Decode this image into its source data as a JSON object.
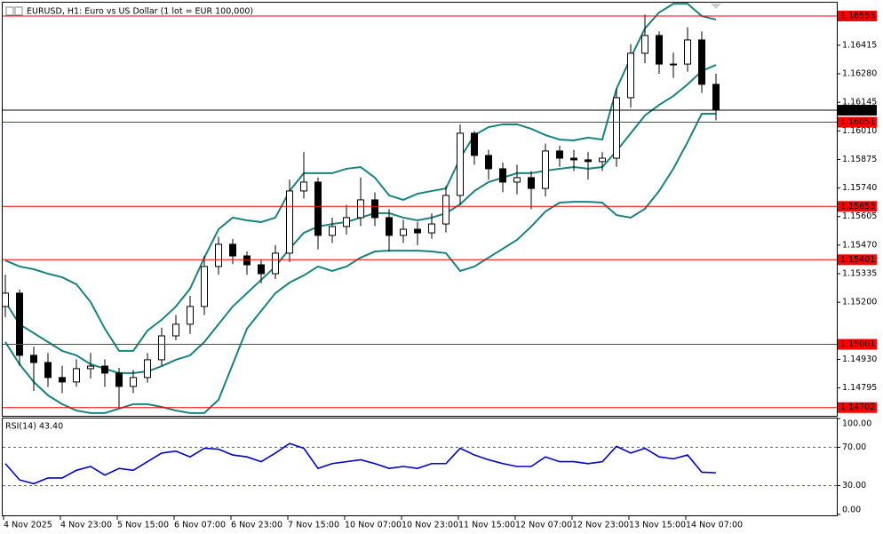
{
  "chart_data": [
    {
      "type": "candlestick",
      "title": "EURUSD, H1:  Euro vs US Dollar (1 lot = EUR 100,000)",
      "open": [
        1.1518,
        1.15243,
        1.14949,
        1.14915,
        1.14844,
        1.14823,
        1.14886,
        1.14898,
        1.14865,
        1.14802,
        1.14844,
        1.14928,
        1.15041,
        1.15096,
        1.1518,
        1.15369,
        1.15474,
        1.15419,
        1.15377,
        1.15335,
        1.15432,
        1.15726,
        1.15768,
        1.15516,
        1.15558,
        1.156,
        1.15684,
        1.156,
        1.15516,
        1.15545,
        1.15528,
        1.1557,
        1.15705,
        1.15999,
        1.15894,
        1.15831,
        1.15768,
        1.15789,
        1.15738,
        1.15915,
        1.15881,
        1.15873,
        1.15865,
        1.15881,
        1.16167,
        1.16377,
        1.16461,
        1.16326,
        1.16326,
        1.1644,
        1.1623
      ],
      "high": [
        1.1533,
        1.1526,
        1.1499,
        1.1496,
        1.149,
        1.1493,
        1.1496,
        1.1493,
        1.1489,
        1.1488,
        1.1496,
        1.1508,
        1.1514,
        1.1523,
        1.1542,
        1.1551,
        1.155,
        1.1544,
        1.154,
        1.1547,
        1.1578,
        1.1591,
        1.1579,
        1.156,
        1.1566,
        1.1579,
        1.1572,
        1.1564,
        1.1559,
        1.1558,
        1.1562,
        1.1575,
        1.1604,
        1.1601,
        1.1592,
        1.1586,
        1.1585,
        1.1582,
        1.1595,
        1.1594,
        1.1592,
        1.1591,
        1.1591,
        1.1621,
        1.1642,
        1.1656,
        1.1648,
        1.1638,
        1.165,
        1.1648,
        1.1628
      ],
      "low": [
        1.1513,
        1.149,
        1.1478,
        1.148,
        1.1477,
        1.148,
        1.1484,
        1.148,
        1.147,
        1.1477,
        1.1482,
        1.149,
        1.1502,
        1.1505,
        1.1514,
        1.1533,
        1.1538,
        1.1533,
        1.1529,
        1.1531,
        1.1539,
        1.1569,
        1.1545,
        1.1548,
        1.1552,
        1.1556,
        1.1556,
        1.1544,
        1.1548,
        1.1547,
        1.155,
        1.1553,
        1.1566,
        1.1585,
        1.1578,
        1.1572,
        1.1571,
        1.1564,
        1.157,
        1.1584,
        1.1582,
        1.1578,
        1.1582,
        1.1584,
        1.1612,
        1.1633,
        1.1628,
        1.1626,
        1.1629,
        1.1619,
        1.1606
      ],
      "close": [
        1.15243,
        1.14949,
        1.14915,
        1.14844,
        1.14823,
        1.14886,
        1.14898,
        1.14865,
        1.14802,
        1.14844,
        1.14928,
        1.15041,
        1.15096,
        1.1518,
        1.15369,
        1.15474,
        1.15419,
        1.15377,
        1.15335,
        1.15432,
        1.15726,
        1.15768,
        1.15516,
        1.15558,
        1.156,
        1.15684,
        1.156,
        1.15516,
        1.15545,
        1.15528,
        1.1557,
        1.15705,
        1.15999,
        1.15894,
        1.15831,
        1.15768,
        1.15789,
        1.15738,
        1.15915,
        1.15881,
        1.15873,
        1.15865,
        1.15881,
        1.16167,
        1.16377,
        1.16461,
        1.16326,
        1.16326,
        1.1644,
        1.1623,
        1.16108
      ],
      "up_color": "#ffffff",
      "down_color": "#000000",
      "bands": {
        "color": "#178282",
        "upper": [
          1.15398,
          1.15369,
          1.15356,
          1.15335,
          1.15318,
          1.15285,
          1.15201,
          1.15075,
          1.1497,
          1.1497,
          1.15066,
          1.15117,
          1.1518,
          1.15264,
          1.15411,
          1.15545,
          1.156,
          1.15587,
          1.15579,
          1.156,
          1.15726,
          1.1581,
          1.1581,
          1.1581,
          1.15831,
          1.15839,
          1.15789,
          1.15705,
          1.15684,
          1.15713,
          1.15726,
          1.15738,
          1.15881,
          1.1599,
          1.16028,
          1.16041,
          1.16041,
          1.1602,
          1.1599,
          1.15969,
          1.15965,
          1.15978,
          1.15969,
          1.16209,
          1.16356,
          1.16494,
          1.1657,
          1.16611,
          1.16611,
          1.16553,
          1.16536
        ],
        "middle": [
          1.15201,
          1.15096,
          1.15054,
          1.15012,
          1.1497,
          1.14949,
          1.14907,
          1.14886,
          1.14865,
          1.14865,
          1.14873,
          1.14898,
          1.14928,
          1.14949,
          1.15012,
          1.15096,
          1.1518,
          1.15243,
          1.15306,
          1.15369,
          1.15453,
          1.15528,
          1.15558,
          1.1557,
          1.15579,
          1.156,
          1.15621,
          1.15621,
          1.156,
          1.15587,
          1.156,
          1.15621,
          1.15663,
          1.15726,
          1.15768,
          1.15789,
          1.1581,
          1.1581,
          1.15822,
          1.15831,
          1.15839,
          1.15831,
          1.15839,
          1.15915,
          1.15999,
          1.16083,
          1.16133,
          1.16175,
          1.1623,
          1.16293,
          1.16322
        ],
        "lower": [
          1.15012,
          1.14907,
          1.14823,
          1.1476,
          1.14718,
          1.14688,
          1.14676,
          1.14676,
          1.14697,
          1.14718,
          1.14718,
          1.14705,
          1.14688,
          1.14676,
          1.14676,
          1.14739,
          1.14907,
          1.15075,
          1.15159,
          1.15243,
          1.15293,
          1.15327,
          1.15369,
          1.15348,
          1.15369,
          1.15411,
          1.1544,
          1.15444,
          1.15444,
          1.15444,
          1.1544,
          1.15432,
          1.15348,
          1.15369,
          1.15411,
          1.15453,
          1.15495,
          1.15558,
          1.15629,
          1.15671,
          1.15675,
          1.15675,
          1.15671,
          1.15612,
          1.156,
          1.15642,
          1.15726,
          1.15831,
          1.15957,
          1.16091,
          1.16091
        ]
      },
      "ylim": [
        1.14663,
        1.16612
      ],
      "yticks": [
        1.16415,
        {
          "value": 1.1628,
          "label": "1.16280"
        },
        1.16145,
        {
          "value": 1.1601,
          "label": "1.16010"
        },
        1.15875,
        {
          "value": 1.1574,
          "label": "1.15740"
        },
        1.15605,
        {
          "value": 1.1547,
          "label": "1.15470"
        },
        1.15335,
        {
          "value": 1.152,
          "label": "1.15200"
        },
        {
          "value": 1.1493,
          "label": "1.14930"
        },
        1.14795
      ],
      "levels": {
        "color": "#ff0000",
        "values": [
          1.16553,
          1.16051,
          1.15653,
          1.15401,
          1.15001,
          1.14702
        ]
      },
      "current_price": 1.16108
    },
    {
      "type": "line",
      "title": "RSI(14) 43.40",
      "color": "#0000cd",
      "values": [
        53,
        36,
        32,
        38,
        38,
        46,
        50,
        41,
        48,
        46,
        55,
        64,
        66,
        60,
        69,
        68,
        62,
        60,
        55,
        64,
        74,
        69,
        48,
        53,
        55,
        57,
        53,
        48,
        50,
        48,
        53,
        53,
        69,
        62,
        57,
        53,
        50,
        50,
        60,
        55,
        55,
        53,
        55,
        71,
        64,
        69,
        60,
        58,
        62,
        44,
        43.4
      ],
      "ylim": [
        -1,
        101
      ],
      "yticks": [
        {
          "value": 100,
          "label": "100.00"
        },
        {
          "value": 70,
          "label": "70.00"
        },
        {
          "value": 30,
          "label": "30.00"
        },
        {
          "value": 0,
          "label": "0.00"
        }
      ],
      "levels": [
        70,
        30
      ],
      "level_color": "#3a7a3a",
      "x_labels": [
        "4 Nov 2025",
        "4 Nov 23:00",
        "5 Nov 15:00",
        "6 Nov 07:00",
        "6 Nov 23:00",
        "7 Nov 15:00",
        "10 Nov 07:00",
        "10 Nov 23:00",
        "11 Nov 15:00",
        "12 Nov 07:00",
        "12 Nov 23:00",
        "13 Nov 15:00",
        "14 Nov 07:00"
      ]
    }
  ]
}
